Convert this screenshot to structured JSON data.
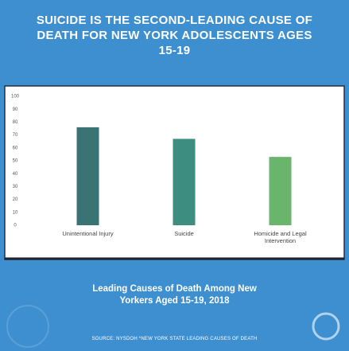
{
  "chart_data": {
    "type": "bar",
    "title": "SUICIDE IS THE SECOND-LEADING CAUSE OF DEATH FOR NEW YORK ADOLESCENTS AGES 15-19",
    "subtitle": "Leading Causes of Death Among New Yorkers Aged 15-19, 2018",
    "source": "SOURCE: NYSDOH *NEW YORK STATE LEADING CAUSES OF DEATH",
    "categories": [
      "Unintentional Injury",
      "Suicide",
      "Homicide and Legal Intervention"
    ],
    "values": [
      76,
      67,
      53
    ],
    "colors": [
      "#3a7374",
      "#3d8e80",
      "#69b56c"
    ],
    "ylim": [
      0,
      100
    ],
    "yticks": [
      0,
      10,
      20,
      30,
      40,
      50,
      60,
      70,
      80,
      90,
      100
    ],
    "grid": false
  }
}
